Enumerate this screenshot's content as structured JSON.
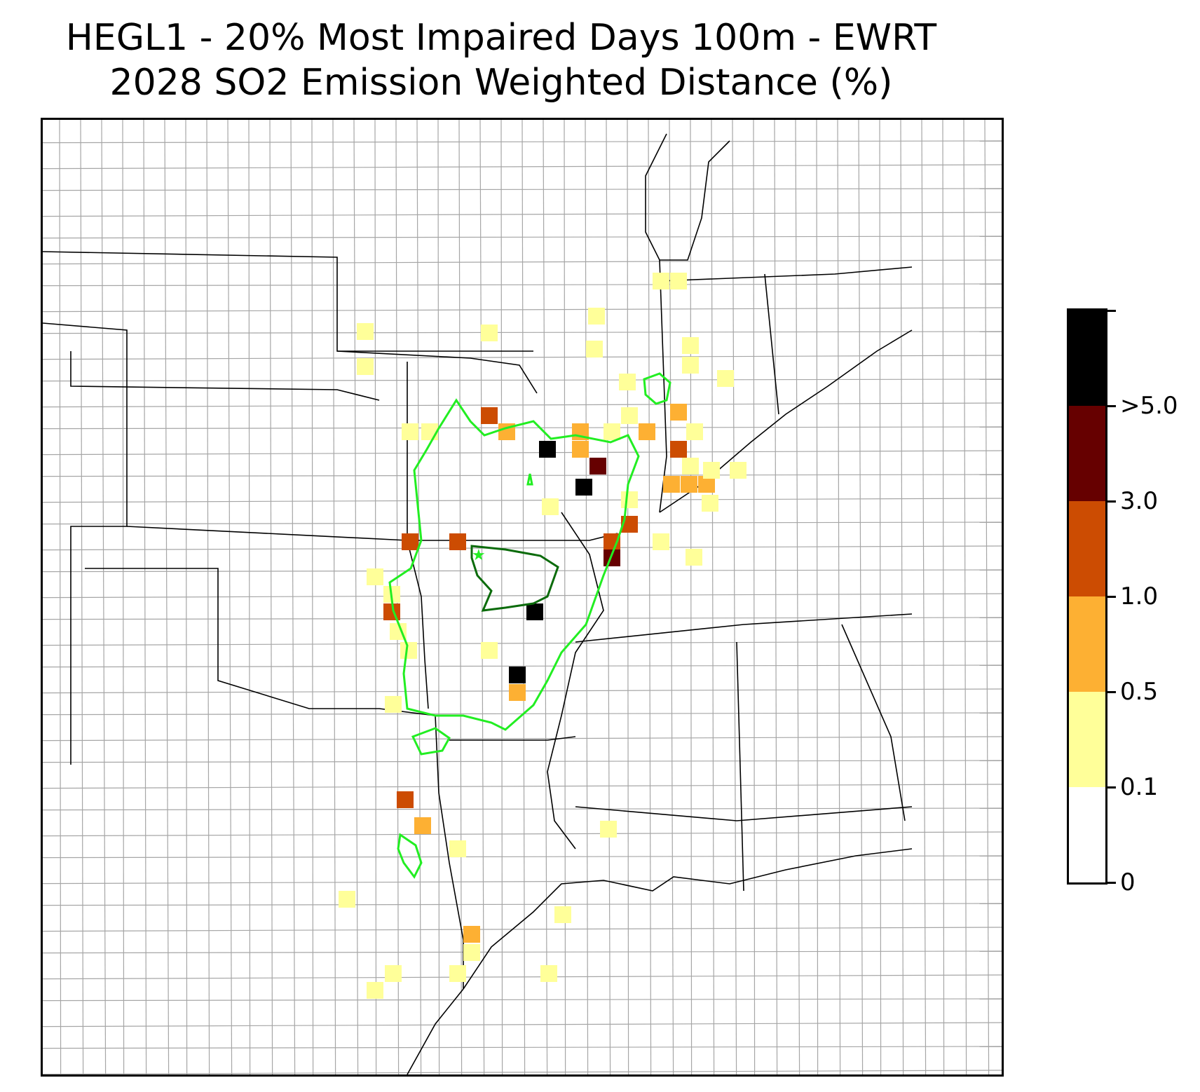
{
  "title": {
    "line1": "HEGL1 - 20% Most Impaired Days 100m - EWRT",
    "line2": "2028 SO2 Emission Weighted Distance (%)"
  },
  "colors": {
    "county_lines": "#a6a6a6",
    "state_lines": "#000000",
    "contour_light": "#22ee22",
    "contour_dark": "#0b6b0b",
    "site_marker": "#22ee22"
  },
  "legend": {
    "ticks": [
      "0",
      "0.1",
      "0.5",
      "1.0",
      "3.0",
      ">5.0"
    ],
    "bins": [
      {
        "color": "#ffffff"
      },
      {
        "color": "#ffff99"
      },
      {
        "color": "#fdb033"
      },
      {
        "color": "#cc4c02"
      },
      {
        "color": "#660000"
      },
      {
        "color": "#000000"
      }
    ]
  },
  "map": {
    "site_marker_icon": "star-icon"
  }
}
